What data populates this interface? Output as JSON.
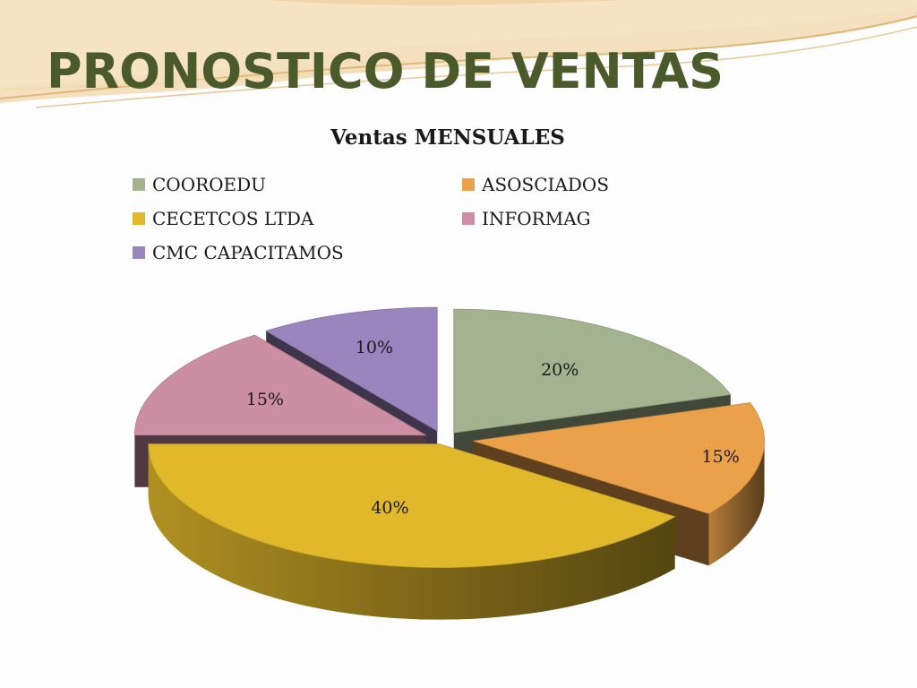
{
  "slide": {
    "title": "PRONOSTICO DE VENTAS"
  },
  "chart_data": {
    "type": "pie",
    "title": "Ventas MENSUALES",
    "legend_position": "top",
    "categories": [
      "COOROEDU",
      "ASOSCIADOS",
      "CECETCOS LTDA",
      "INFORMAG",
      "CMC CAPACITAMOS"
    ],
    "values": [
      20,
      15,
      40,
      15,
      10
    ],
    "labels": [
      "20%",
      "15%",
      "40%",
      "15%",
      "10%"
    ],
    "colors": [
      "#a4b38f",
      "#eba14a",
      "#e0b82a",
      "#cc8ea3",
      "#9b85bf"
    ],
    "exploded": true,
    "three_d": true
  },
  "legend": {
    "items": [
      {
        "label": "COOROEDU",
        "color": "#a4b38f"
      },
      {
        "label": "ASOSCIADOS",
        "color": "#eba14a"
      },
      {
        "label": "CECETCOS LTDA",
        "color": "#e0b82a"
      },
      {
        "label": "INFORMAG",
        "color": "#cc8ea3"
      },
      {
        "label": "CMC CAPACITAMOS",
        "color": "#9b85bf"
      }
    ]
  }
}
